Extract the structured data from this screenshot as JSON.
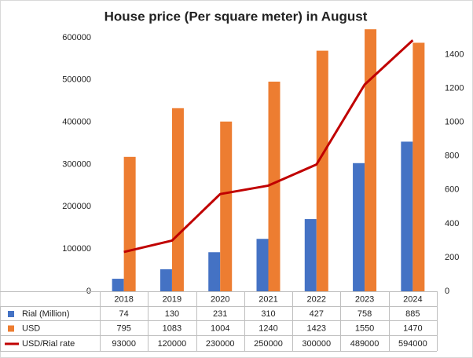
{
  "chart_data": {
    "type": "bar",
    "title": "House price (Per square meter) in August",
    "categories": [
      "2018",
      "2019",
      "2020",
      "2021",
      "2022",
      "2023",
      "2024"
    ],
    "series": [
      {
        "name": "Rial (Million)",
        "type": "bar",
        "axis": "y2",
        "color": "#4472c4",
        "values": [
          74,
          130,
          231,
          310,
          427,
          758,
          885
        ]
      },
      {
        "name": "USD",
        "type": "bar",
        "axis": "y2",
        "color": "#ed7d31",
        "values": [
          795,
          1083,
          1004,
          1240,
          1423,
          1550,
          1470
        ]
      },
      {
        "name": "USD/Rial rate",
        "type": "line",
        "axis": "y",
        "color": "#c00000",
        "values": [
          93000,
          120000,
          230000,
          250000,
          300000,
          489000,
          594000
        ]
      }
    ],
    "ylim": [
      0,
      600000
    ],
    "yticks": [
      0,
      100000,
      200000,
      300000,
      400000,
      500000,
      600000
    ],
    "y2lim": [
      0,
      1500
    ],
    "y2ticks": [
      0,
      200,
      400,
      600,
      800,
      1000,
      1200,
      1400
    ],
    "grid": false
  }
}
